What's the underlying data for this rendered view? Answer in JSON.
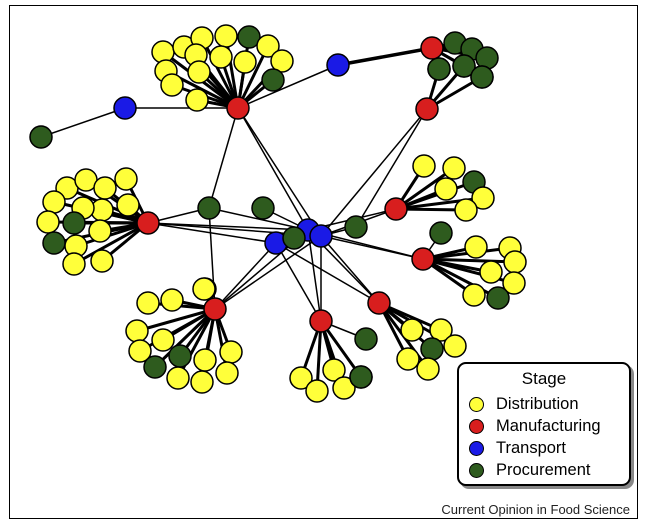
{
  "legend": {
    "title": "Stage",
    "items": [
      {
        "label": "Distribution",
        "color": "#ffff3a"
      },
      {
        "label": "Manufacturing",
        "color": "#d81e1e"
      },
      {
        "label": "Transport",
        "color": "#1a1ae6"
      },
      {
        "label": "Procurement",
        "color": "#2e5b1e"
      }
    ]
  },
  "caption": "Current Opinion in Food Science"
}
